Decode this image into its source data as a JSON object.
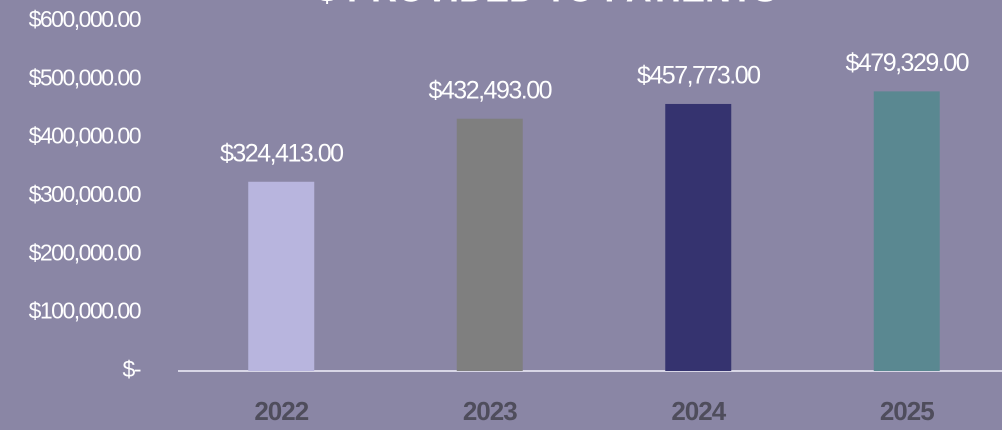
{
  "chart_data": {
    "type": "bar",
    "title": "$ PROVIDED TO PATIENTS",
    "categories": [
      "2022",
      "2023",
      "2024",
      "2025"
    ],
    "values": [
      324413,
      432493,
      457773,
      479329
    ],
    "value_labels": [
      "$324,413.00",
      "$432,493.00",
      "$457,773.00",
      "$479,329.00"
    ],
    "colors": [
      "#b8b5de",
      "#7f7f7f",
      "#35336f",
      "#5a8891"
    ],
    "ylim": [
      0,
      600000
    ],
    "yticks": [
      {
        "value": 0,
        "label": "$-"
      },
      {
        "value": 100000,
        "label": "$100,000.00"
      },
      {
        "value": 200000,
        "label": "$200,000.00"
      },
      {
        "value": 300000,
        "label": "$300,000.00"
      },
      {
        "value": 400000,
        "label": "$400,000.00"
      },
      {
        "value": 500000,
        "label": "$500,000.00"
      },
      {
        "value": 600000,
        "label": "$600,000.00"
      }
    ],
    "grid": false
  }
}
